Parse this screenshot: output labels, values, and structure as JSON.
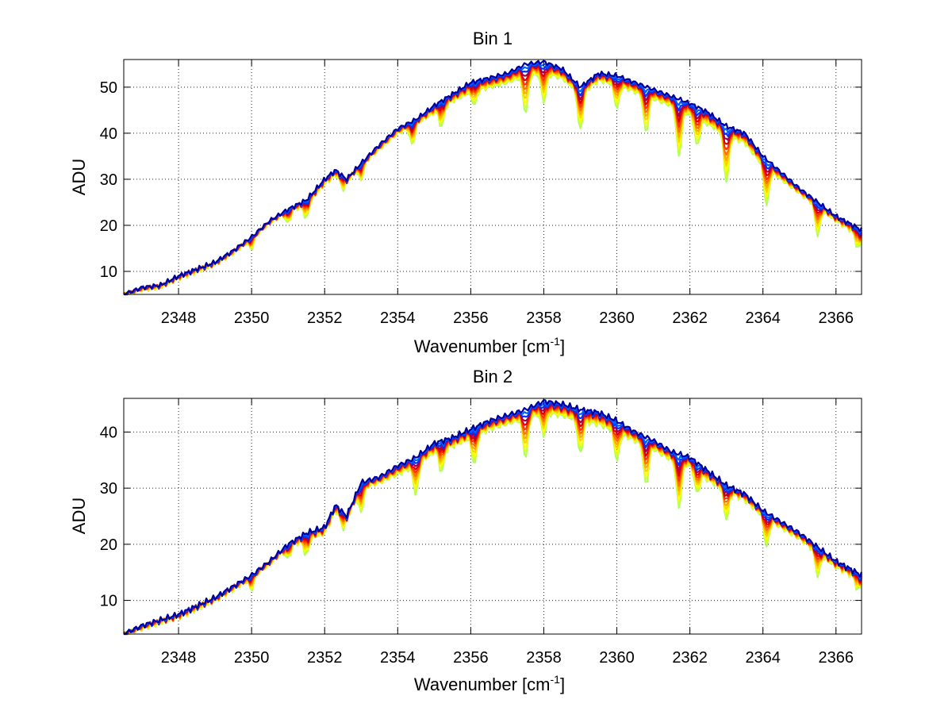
{
  "figure": {
    "background": "#ffffff"
  },
  "chart_data": [
    {
      "type": "line",
      "title": "Bin 1",
      "xlabel": "Wavenumber [cm",
      "xlabel_sup": "-1",
      "xlabel_end": "]",
      "ylabel": "ADU",
      "xlim": [
        2346.5,
        2366.7
      ],
      "ylim": [
        5,
        56
      ],
      "xticks": [
        2348,
        2350,
        2352,
        2354,
        2356,
        2358,
        2360,
        2362,
        2364,
        2366
      ],
      "yticks": [
        10,
        20,
        30,
        40,
        50
      ],
      "grid": true,
      "series_count": 12,
      "colormap": [
        "#adff5a",
        "#d7ff2a",
        "#ffff00",
        "#ffd200",
        "#ffaa00",
        "#ff7000",
        "#ff3300",
        "#e00000",
        "#a00050",
        "#0030ff",
        "#0060ff",
        "#0000a0"
      ],
      "envelope": {
        "x": [
          2346.5,
          2347.0,
          2347.5,
          2348.0,
          2348.5,
          2349.0,
          2349.5,
          2350.0,
          2350.5,
          2351.0,
          2351.5,
          2352.0,
          2352.3,
          2352.6,
          2353.0,
          2353.5,
          2354.0,
          2354.5,
          2355.0,
          2355.5,
          2356.0,
          2356.5,
          2357.0,
          2357.5,
          2358.0,
          2358.5,
          2359.0,
          2359.5,
          2360.0,
          2360.5,
          2361.0,
          2361.5,
          2362.0,
          2362.5,
          2363.0,
          2363.5,
          2364.0,
          2364.5,
          2365.0,
          2365.5,
          2366.0,
          2366.7
        ],
        "upper": [
          5.0,
          6.5,
          7.0,
          9.0,
          10.5,
          12.0,
          14.5,
          17.5,
          21.0,
          23.5,
          25.5,
          30.0,
          32.0,
          30.0,
          33.5,
          37.5,
          41.0,
          43.0,
          46.0,
          48.5,
          51.0,
          52.0,
          53.0,
          55.0,
          55.5,
          54.0,
          50.0,
          53.0,
          52.5,
          51.0,
          49.5,
          48.0,
          46.5,
          44.5,
          41.5,
          40.0,
          35.0,
          31.5,
          28.0,
          25.0,
          22.0,
          19.0
        ],
        "lower": [
          5.0,
          6.0,
          6.5,
          8.5,
          10.0,
          11.5,
          14.0,
          17.0,
          20.5,
          23.0,
          24.5,
          29.0,
          31.0,
          29.5,
          33.0,
          36.5,
          40.0,
          42.0,
          44.5,
          47.0,
          49.0,
          50.0,
          51.0,
          52.5,
          53.0,
          52.0,
          48.5,
          51.5,
          50.5,
          49.0,
          47.5,
          46.0,
          44.0,
          42.0,
          39.5,
          38.0,
          33.0,
          30.0,
          27.0,
          24.0,
          21.0,
          17.5
        ]
      },
      "dips": [
        {
          "x": 2350.0,
          "depth": 2
        },
        {
          "x": 2351.0,
          "depth": 2.5
        },
        {
          "x": 2351.5,
          "depth": 3
        },
        {
          "x": 2352.5,
          "depth": 2
        },
        {
          "x": 2353.0,
          "depth": 3
        },
        {
          "x": 2354.4,
          "depth": 4
        },
        {
          "x": 2355.2,
          "depth": 4
        },
        {
          "x": 2356.1,
          "depth": 3
        },
        {
          "x": 2357.5,
          "depth": 8
        },
        {
          "x": 2358.0,
          "depth": 6
        },
        {
          "x": 2359.0,
          "depth": 8
        },
        {
          "x": 2360.0,
          "depth": 5
        },
        {
          "x": 2360.8,
          "depth": 8
        },
        {
          "x": 2361.7,
          "depth": 10
        },
        {
          "x": 2362.2,
          "depth": 6
        },
        {
          "x": 2363.0,
          "depth": 10
        },
        {
          "x": 2364.1,
          "depth": 8
        },
        {
          "x": 2365.5,
          "depth": 6
        },
        {
          "x": 2366.6,
          "depth": 3
        }
      ]
    },
    {
      "type": "line",
      "title": "Bin 2",
      "xlabel": "Wavenumber [cm",
      "xlabel_sup": "-1",
      "xlabel_end": "]",
      "ylabel": "ADU",
      "xlim": [
        2346.5,
        2366.7
      ],
      "ylim": [
        4,
        46
      ],
      "xticks": [
        2348,
        2350,
        2352,
        2354,
        2356,
        2358,
        2360,
        2362,
        2364,
        2366
      ],
      "yticks": [
        10,
        20,
        30,
        40
      ],
      "grid": true,
      "series_count": 12,
      "colormap": [
        "#adff5a",
        "#d7ff2a",
        "#ffff00",
        "#ffd200",
        "#ffaa00",
        "#ff7000",
        "#ff3300",
        "#e00000",
        "#a00050",
        "#0030ff",
        "#0060ff",
        "#0000a0"
      ],
      "envelope": {
        "x": [
          2346.5,
          2347.0,
          2347.5,
          2348.0,
          2348.5,
          2349.0,
          2349.5,
          2350.0,
          2350.5,
          2351.0,
          2351.5,
          2352.0,
          2352.3,
          2352.6,
          2353.0,
          2353.5,
          2354.0,
          2354.5,
          2355.0,
          2355.5,
          2356.0,
          2356.5,
          2357.0,
          2357.5,
          2358.0,
          2358.5,
          2359.0,
          2359.5,
          2360.0,
          2360.5,
          2361.0,
          2361.5,
          2362.0,
          2362.5,
          2363.0,
          2363.5,
          2364.0,
          2364.5,
          2365.0,
          2365.5,
          2366.0,
          2366.7
        ],
        "upper": [
          4.0,
          5.5,
          6.5,
          7.5,
          9.0,
          10.5,
          12.5,
          14.5,
          17.0,
          20.0,
          22.0,
          23.0,
          27.0,
          25.0,
          31.0,
          32.0,
          34.0,
          35.5,
          38.0,
          39.0,
          40.5,
          42.0,
          43.0,
          44.0,
          45.5,
          45.0,
          44.0,
          43.5,
          42.0,
          40.0,
          38.5,
          36.5,
          35.5,
          33.0,
          30.5,
          29.0,
          26.0,
          24.0,
          22.0,
          19.5,
          17.0,
          14.5
        ],
        "lower": [
          4.0,
          5.0,
          6.0,
          7.0,
          8.5,
          10.0,
          12.0,
          14.0,
          16.5,
          19.5,
          21.0,
          22.0,
          26.0,
          24.5,
          30.0,
          31.0,
          32.5,
          34.0,
          36.5,
          37.5,
          39.0,
          40.5,
          41.5,
          42.5,
          43.5,
          43.0,
          42.0,
          41.5,
          40.0,
          38.5,
          37.0,
          35.0,
          34.0,
          31.5,
          29.5,
          28.0,
          25.0,
          23.0,
          21.0,
          18.5,
          16.0,
          13.5
        ]
      },
      "dips": [
        {
          "x": 2350.0,
          "depth": 2
        },
        {
          "x": 2351.0,
          "depth": 2
        },
        {
          "x": 2351.5,
          "depth": 3
        },
        {
          "x": 2352.5,
          "depth": 2
        },
        {
          "x": 2353.0,
          "depth": 4
        },
        {
          "x": 2354.5,
          "depth": 5
        },
        {
          "x": 2355.2,
          "depth": 4
        },
        {
          "x": 2356.1,
          "depth": 5
        },
        {
          "x": 2357.5,
          "depth": 7
        },
        {
          "x": 2358.0,
          "depth": 4
        },
        {
          "x": 2359.0,
          "depth": 6
        },
        {
          "x": 2360.0,
          "depth": 5
        },
        {
          "x": 2360.8,
          "depth": 7
        },
        {
          "x": 2361.7,
          "depth": 8
        },
        {
          "x": 2362.2,
          "depth": 4
        },
        {
          "x": 2363.0,
          "depth": 5
        },
        {
          "x": 2364.1,
          "depth": 5
        },
        {
          "x": 2365.5,
          "depth": 4
        },
        {
          "x": 2366.6,
          "depth": 2
        }
      ]
    }
  ]
}
